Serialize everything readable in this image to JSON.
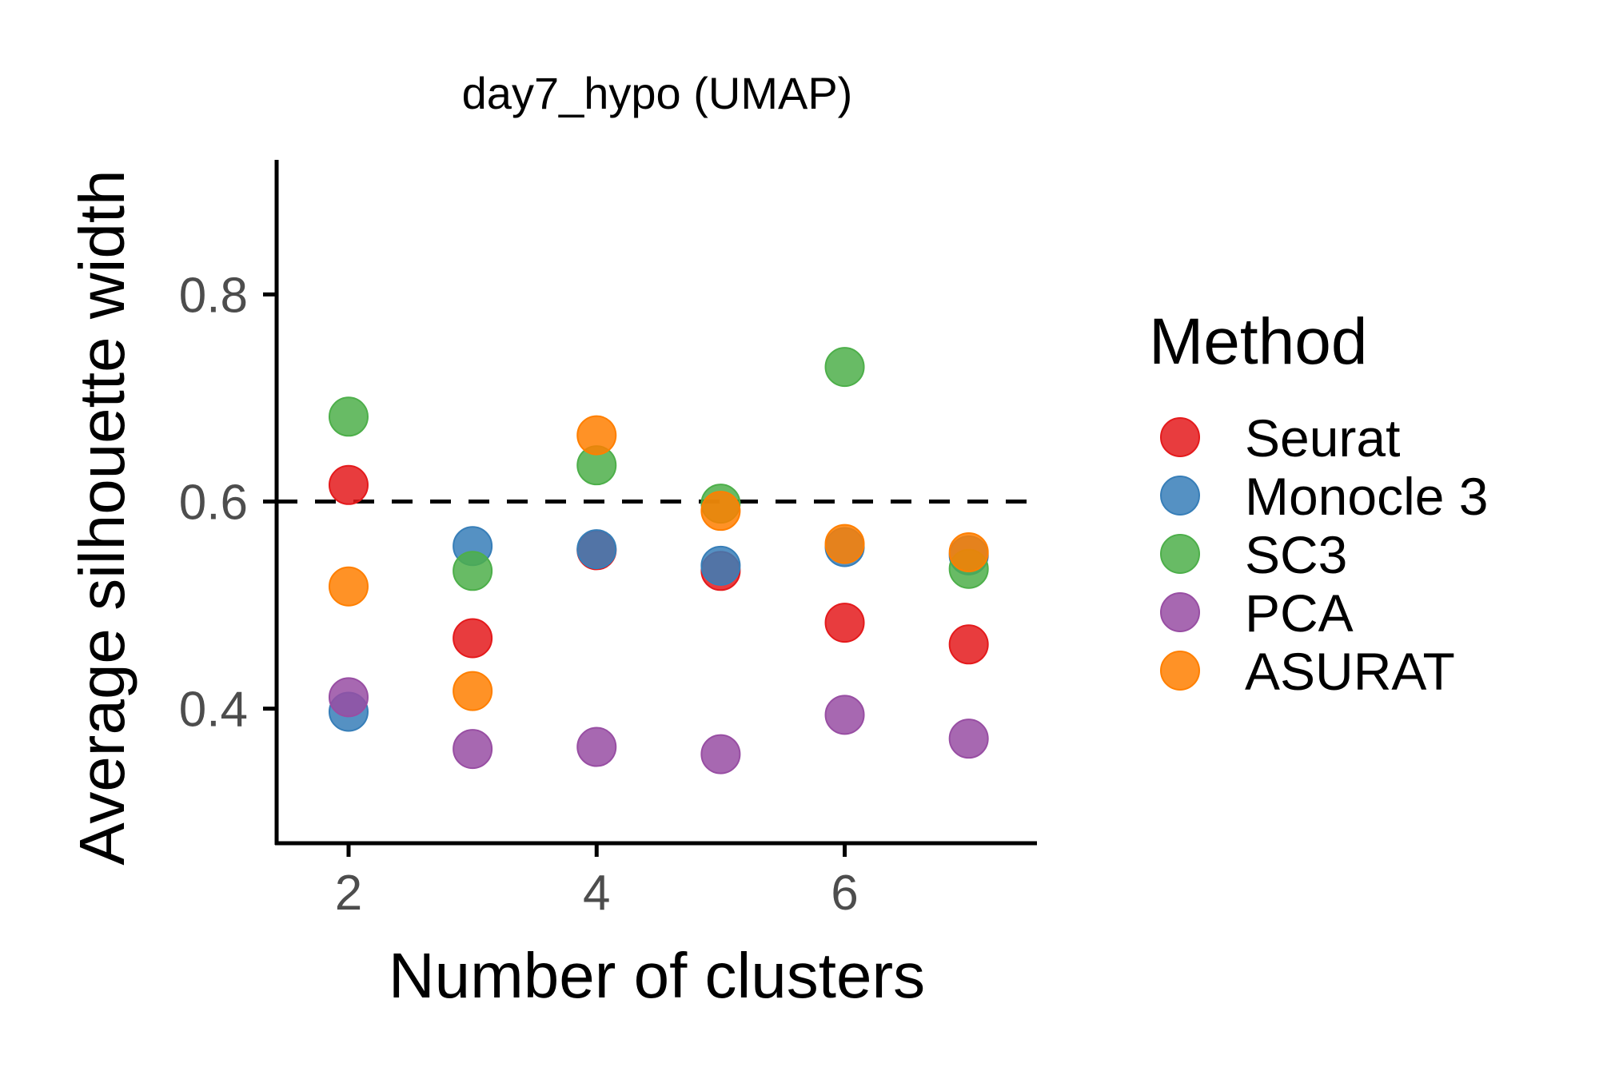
{
  "chart_data": {
    "type": "scatter",
    "title": "day7_hypo (UMAP)",
    "xlabel": "Number of clusters",
    "ylabel": "Average silhouette width",
    "xlim": [
      1.42,
      7.55
    ],
    "ylim": [
      0.27,
      0.93
    ],
    "xticks": [
      2,
      4,
      6
    ],
    "xtick_labels": [
      "2",
      "4",
      "6"
    ],
    "yticks": [
      0.4,
      0.6,
      0.8
    ],
    "ytick_labels": [
      "0.4",
      "0.6",
      "0.8"
    ],
    "reference_line": {
      "y": 0.6,
      "style": "dashed"
    },
    "grid": false,
    "legend": {
      "title": "Method",
      "position": "right"
    },
    "series": [
      {
        "name": "Seurat",
        "color": "#E41A1C",
        "points": [
          [
            2,
            0.616
          ],
          [
            3,
            0.468
          ],
          [
            4,
            0.553
          ],
          [
            5,
            0.533
          ],
          [
            6,
            0.483
          ],
          [
            7,
            0.462
          ]
        ]
      },
      {
        "name": "Monocle 3",
        "color": "#377EB8",
        "points": [
          [
            2,
            0.397
          ],
          [
            3,
            0.557
          ],
          [
            4,
            0.554
          ],
          [
            5,
            0.538
          ],
          [
            6,
            0.556
          ],
          [
            7,
            0.548
          ]
        ]
      },
      {
        "name": "SC3",
        "color": "#4DAF4A",
        "points": [
          [
            2,
            0.682
          ],
          [
            3,
            0.533
          ],
          [
            4,
            0.635
          ],
          [
            5,
            0.598
          ],
          [
            6,
            0.73
          ],
          [
            7,
            0.535
          ]
        ]
      },
      {
        "name": "PCA",
        "color": "#984EA3",
        "points": [
          [
            2,
            0.411
          ],
          [
            3,
            0.361
          ],
          [
            4,
            0.363
          ],
          [
            5,
            0.356
          ],
          [
            6,
            0.394
          ],
          [
            7,
            0.371
          ]
        ]
      },
      {
        "name": "ASURAT",
        "color": "#FF7F00",
        "points": [
          [
            2,
            0.518
          ],
          [
            3,
            0.417
          ],
          [
            4,
            0.664
          ],
          [
            5,
            0.591
          ],
          [
            6,
            0.559
          ],
          [
            7,
            0.551
          ]
        ]
      }
    ]
  }
}
